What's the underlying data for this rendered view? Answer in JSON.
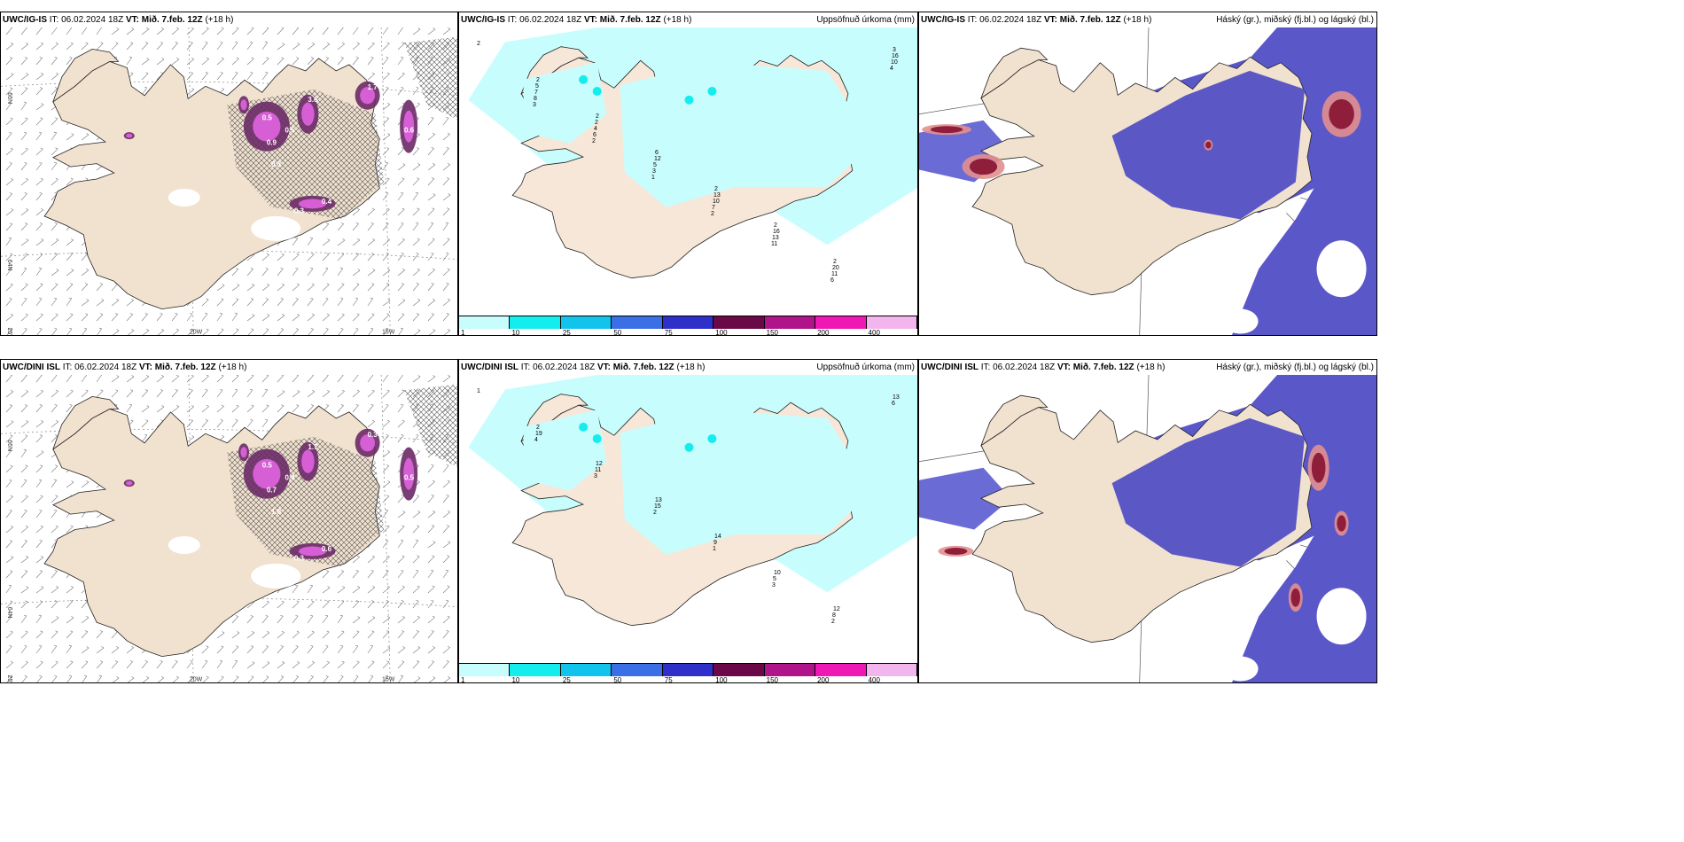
{
  "rows": [
    {
      "model": "UWC/IG-IS",
      "panels": [
        {
          "type": "wind"
        },
        {
          "type": "precip",
          "right": "Uppsöfnuð úrkoma (mm)"
        },
        {
          "type": "cloud",
          "right": "Háský (gr.), miðský (fj.bl.) og lágský (bl.)"
        }
      ]
    },
    {
      "model": "UWC/DINI ISL",
      "panels": [
        {
          "type": "wind"
        },
        {
          "type": "precip",
          "right": "Uppsöfnuð úrkoma (mm)"
        },
        {
          "type": "cloud",
          "right": "Háský (gr.), miðský (fj.bl.) og lágský (bl.)"
        }
      ]
    }
  ],
  "it_label": "IT:",
  "it_value": "06.02.2024 18Z",
  "vt_label": "VT: Mið. 7.feb. 12Z",
  "lead": "(+18 h)",
  "axis_labels": {
    "lat66": "66N",
    "lat64": "64N",
    "lon25": "25W",
    "lon20": "20W",
    "lon15": "15W"
  },
  "colorbar": {
    "ticks": [
      "1",
      "10",
      "25",
      "50",
      "75",
      "100",
      "150",
      "200",
      "400"
    ],
    "colors": [
      "#c8fdfd",
      "#14eded",
      "#12c4ec",
      "#3b6fe6",
      "#2f2fc9",
      "#6b0848",
      "#b0148a",
      "#f018b4",
      "#f3b5ee"
    ]
  },
  "precip_numbers_top": [
    "2",
    "2",
    "2",
    "6",
    "2",
    "2",
    "2",
    "3",
    "5",
    "2",
    "12",
    "13",
    "16",
    "20",
    "16",
    "7",
    "4",
    "5",
    "10",
    "13",
    "11",
    "10",
    "8",
    "6",
    "3",
    "7",
    "11",
    "6",
    "4",
    "3",
    "2",
    "1",
    "2"
  ],
  "precip_numbers_bot": [
    "1",
    "2",
    "12",
    "13",
    "14",
    "10",
    "12",
    "13",
    "19",
    "11",
    "15",
    "9",
    "5",
    "8",
    "6",
    "4",
    "3",
    "2",
    "1",
    "3",
    "2"
  ],
  "wind_vals_top": [
    "0.5",
    "0.9",
    "3.6",
    "1.7",
    "0.3",
    "0.6",
    "0.5",
    "0.4",
    "0.3"
  ],
  "wind_vals_bot": [
    "0.5",
    "0.7",
    "1.7",
    "0.3",
    "1.8",
    "0.5",
    "0.4",
    "0.6",
    "0.3"
  ]
}
